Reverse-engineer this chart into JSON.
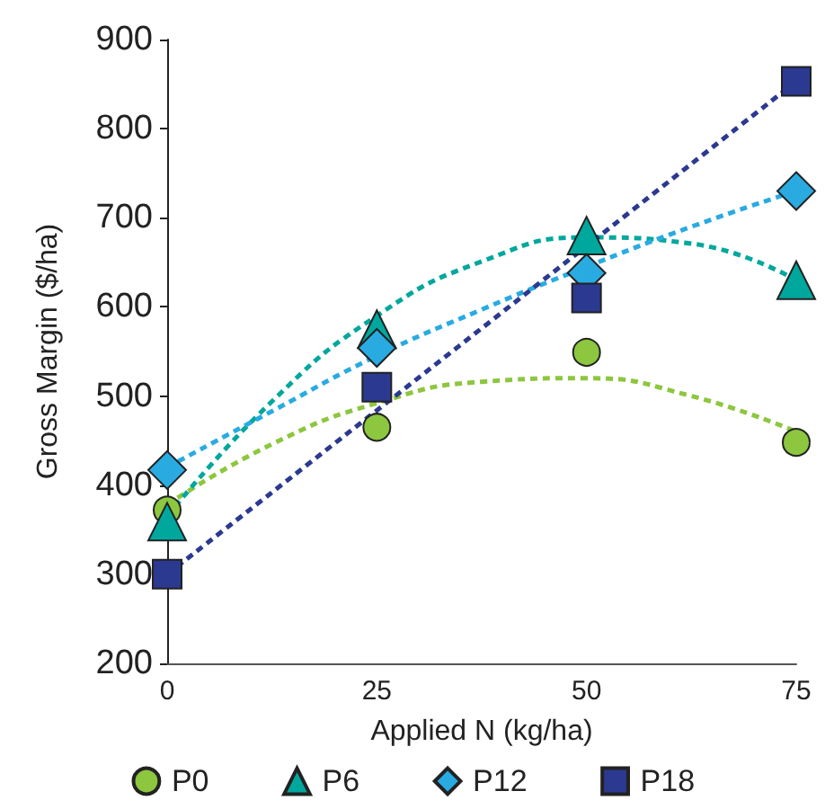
{
  "chart_data": {
    "type": "scatter",
    "xlabel": "Applied N (kg/ha)",
    "ylabel": "Gross Margin ($/ha)",
    "x": [
      0,
      25,
      50,
      75
    ],
    "series": [
      {
        "name": "P0",
        "color": "#8dc63f",
        "marker": "circle",
        "values": [
          372,
          465,
          549,
          448
        ]
      },
      {
        "name": "P6",
        "color": "#00a79d",
        "marker": "triangle",
        "values": [
          359,
          575,
          680,
          630
        ]
      },
      {
        "name": "P12",
        "color": "#29abe2",
        "marker": "diamond",
        "values": [
          417,
          554,
          638,
          730
        ]
      },
      {
        "name": "P18",
        "color": "#2b3990",
        "marker": "square",
        "values": [
          300,
          510,
          610,
          853
        ]
      },
      {
        "type": "line",
        "color": "#8dc63f",
        "line_style": "dashed",
        "marker": "none",
        "x": [
          0,
          12.5,
          25,
          37.5,
          50,
          62.5,
          75
        ],
        "values": [
          378,
          446,
          492,
          516,
          520,
          500,
          460
        ]
      },
      {
        "type": "line",
        "color": "#00a79d",
        "line_style": "dashed",
        "marker": "none",
        "x": [
          0,
          12.5,
          25,
          37.5,
          50,
          62.5,
          75
        ],
        "values": [
          365,
          494,
          590,
          651,
          678,
          671,
          630
        ]
      },
      {
        "type": "line",
        "color": "#29abe2",
        "line_style": "dashed",
        "marker": "none",
        "x": [
          0,
          12.5,
          25,
          37.5,
          50,
          62.5,
          75
        ],
        "values": [
          420,
          483,
          545,
          597,
          645,
          690,
          730
        ]
      },
      {
        "type": "line",
        "color": "#2b3990",
        "line_style": "dashed",
        "marker": "none",
        "x": [
          0,
          37.5,
          75
        ],
        "values": [
          300,
          576,
          853
        ]
      }
    ],
    "xlim": [
      0,
      75
    ],
    "xticks": [
      0,
      25,
      50,
      75
    ],
    "ylim": [
      200,
      900
    ],
    "yticks": [
      200,
      300,
      400,
      500,
      600,
      700,
      800,
      900
    ],
    "grid": false,
    "legend": "bottom"
  }
}
